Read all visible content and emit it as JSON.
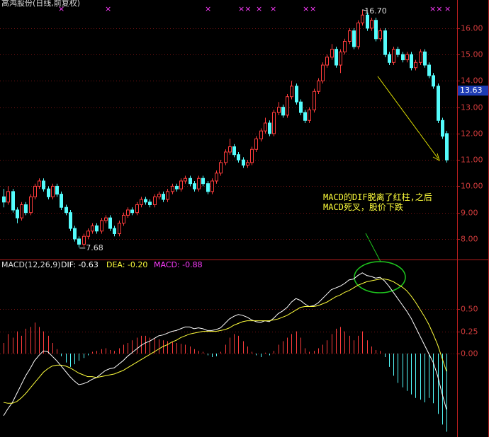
{
  "chart_data": [
    {
      "type": "candlestick",
      "title": "高鸿股份(日线,前复权)",
      "up_color": "#ff3c3c",
      "down_color": "#54fcfc",
      "ylim": [
        7.22,
        17.07
      ],
      "yticks": [
        {
          "value": 8,
          "label": "8.00"
        },
        {
          "value": 9,
          "label": "9.00"
        },
        {
          "value": 10,
          "label": "10.00"
        },
        {
          "value": 11,
          "label": "11.00"
        },
        {
          "value": 12,
          "label": "12.00"
        },
        {
          "value": 13,
          "label": "13.00"
        },
        {
          "value": 14,
          "label": "14.00"
        },
        {
          "value": 15,
          "label": "15.00"
        },
        {
          "value": 16,
          "label": "16.00"
        }
      ],
      "grid": true,
      "current_price": 13.63,
      "high_label": "16.70",
      "low_label": "7.68",
      "annotation": "MACD的DIF脱离了红柱,之后MACD死叉，股价下跌",
      "ohlc": [
        [
          9.6,
          9.9,
          9.2,
          9.4
        ],
        [
          9.4,
          10.0,
          9.3,
          9.8
        ],
        [
          9.8,
          9.9,
          9.0,
          9.1
        ],
        [
          9.1,
          9.2,
          8.6,
          8.8
        ],
        [
          8.8,
          9.4,
          8.7,
          9.3
        ],
        [
          9.3,
          9.4,
          8.9,
          9.0
        ],
        [
          9.0,
          9.7,
          8.9,
          9.6
        ],
        [
          9.6,
          10.1,
          9.5,
          10.0
        ],
        [
          10.0,
          10.3,
          9.9,
          10.2
        ],
        [
          10.2,
          10.3,
          9.8,
          9.9
        ],
        [
          9.9,
          10.0,
          9.5,
          9.6
        ],
        [
          9.6,
          10.1,
          9.5,
          10.0
        ],
        [
          10.0,
          10.1,
          9.6,
          9.7
        ],
        [
          9.7,
          9.8,
          9.1,
          9.2
        ],
        [
          9.2,
          9.3,
          8.9,
          9.0
        ],
        [
          9.0,
          9.1,
          8.3,
          8.4
        ],
        [
          8.4,
          8.5,
          7.9,
          8.0
        ],
        [
          8.0,
          8.1,
          7.68,
          7.8
        ],
        [
          7.8,
          8.2,
          7.7,
          8.1
        ],
        [
          8.1,
          8.4,
          8.0,
          8.3
        ],
        [
          8.3,
          8.6,
          8.2,
          8.5
        ],
        [
          8.5,
          8.6,
          8.2,
          8.3
        ],
        [
          8.3,
          8.8,
          8.2,
          8.7
        ],
        [
          8.7,
          8.9,
          8.6,
          8.8
        ],
        [
          8.8,
          8.9,
          8.3,
          8.4
        ],
        [
          8.4,
          8.5,
          8.1,
          8.2
        ],
        [
          8.2,
          8.7,
          8.1,
          8.6
        ],
        [
          8.6,
          9.0,
          8.5,
          8.9
        ],
        [
          8.9,
          9.2,
          8.8,
          9.1
        ],
        [
          9.1,
          9.2,
          8.9,
          9.0
        ],
        [
          9.0,
          9.4,
          8.9,
          9.3
        ],
        [
          9.3,
          9.6,
          9.2,
          9.5
        ],
        [
          9.5,
          9.6,
          9.3,
          9.4
        ],
        [
          9.4,
          9.5,
          9.2,
          9.3
        ],
        [
          9.3,
          9.7,
          9.2,
          9.6
        ],
        [
          9.6,
          9.8,
          9.5,
          9.7
        ],
        [
          9.7,
          9.8,
          9.4,
          9.5
        ],
        [
          9.5,
          9.9,
          9.4,
          9.8
        ],
        [
          9.8,
          10.1,
          9.7,
          10.0
        ],
        [
          10.0,
          10.1,
          9.8,
          9.9
        ],
        [
          9.9,
          10.3,
          9.8,
          10.2
        ],
        [
          10.2,
          10.4,
          10.1,
          10.3
        ],
        [
          10.3,
          10.4,
          10.0,
          10.1
        ],
        [
          10.1,
          10.2,
          9.8,
          9.9
        ],
        [
          9.9,
          10.4,
          9.8,
          10.3
        ],
        [
          10.3,
          10.4,
          10.0,
          10.1
        ],
        [
          10.1,
          10.2,
          9.7,
          9.8
        ],
        [
          9.8,
          10.3,
          9.7,
          10.2
        ],
        [
          10.2,
          10.6,
          10.1,
          10.5
        ],
        [
          10.5,
          11.0,
          10.4,
          10.9
        ],
        [
          10.9,
          11.4,
          10.8,
          11.3
        ],
        [
          11.3,
          11.8,
          11.2,
          11.5
        ],
        [
          11.5,
          11.6,
          11.1,
          11.2
        ],
        [
          11.2,
          11.3,
          10.9,
          11.0
        ],
        [
          11.0,
          11.1,
          10.7,
          10.8
        ],
        [
          10.8,
          11.0,
          10.7,
          10.9
        ],
        [
          10.9,
          11.5,
          10.8,
          11.4
        ],
        [
          11.4,
          11.9,
          11.3,
          11.8
        ],
        [
          11.8,
          12.2,
          11.7,
          12.1
        ],
        [
          12.1,
          12.6,
          12.0,
          12.4
        ],
        [
          12.4,
          12.5,
          11.9,
          12.0
        ],
        [
          12.0,
          12.9,
          11.9,
          12.8
        ],
        [
          12.8,
          13.2,
          12.7,
          13.0
        ],
        [
          13.0,
          13.1,
          12.6,
          12.7
        ],
        [
          12.7,
          13.5,
          12.6,
          13.4
        ],
        [
          13.4,
          14.0,
          13.3,
          13.8
        ],
        [
          13.8,
          13.9,
          13.1,
          13.2
        ],
        [
          13.2,
          13.3,
          12.7,
          12.8
        ],
        [
          12.8,
          12.9,
          12.4,
          12.5
        ],
        [
          12.5,
          13.0,
          12.4,
          12.9
        ],
        [
          12.9,
          13.7,
          12.8,
          13.6
        ],
        [
          13.6,
          14.1,
          13.5,
          14.0
        ],
        [
          14.0,
          14.7,
          13.9,
          14.6
        ],
        [
          14.6,
          15.0,
          14.5,
          14.9
        ],
        [
          14.9,
          15.4,
          14.8,
          15.2
        ],
        [
          15.2,
          15.3,
          14.5,
          14.6
        ],
        [
          14.6,
          15.2,
          14.3,
          15.1
        ],
        [
          15.1,
          15.6,
          15.0,
          15.5
        ],
        [
          15.5,
          16.0,
          15.4,
          15.9
        ],
        [
          15.9,
          16.0,
          15.2,
          15.3
        ],
        [
          15.3,
          16.3,
          15.2,
          16.2
        ],
        [
          16.2,
          16.7,
          16.1,
          16.5
        ],
        [
          16.5,
          16.6,
          15.9,
          16.0
        ],
        [
          16.0,
          16.4,
          15.9,
          16.3
        ],
        [
          16.3,
          16.4,
          15.5,
          15.6
        ],
        [
          15.6,
          16.0,
          15.5,
          15.9
        ],
        [
          15.9,
          16.0,
          14.9,
          15.0
        ],
        [
          15.0,
          15.1,
          14.6,
          14.7
        ],
        [
          14.7,
          15.3,
          14.6,
          15.2
        ],
        [
          15.2,
          15.3,
          14.9,
          15.0
        ],
        [
          15.0,
          15.1,
          14.7,
          14.8
        ],
        [
          14.8,
          15.1,
          14.7,
          15.0
        ],
        [
          15.0,
          15.1,
          14.4,
          14.5
        ],
        [
          14.5,
          14.8,
          14.4,
          14.7
        ],
        [
          14.7,
          15.2,
          14.6,
          15.1
        ],
        [
          15.1,
          15.2,
          14.5,
          14.6
        ],
        [
          14.6,
          14.7,
          14.1,
          14.2
        ],
        [
          14.2,
          14.3,
          13.7,
          13.8
        ],
        [
          13.8,
          13.9,
          12.4,
          12.5
        ],
        [
          12.5,
          12.6,
          11.8,
          11.9
        ],
        [
          12.0,
          12.1,
          10.9,
          11.0
        ]
      ]
    },
    {
      "type": "macd",
      "title": "MACD(12,26,9)",
      "ylim": [
        -0.94,
        1.06
      ],
      "yticks": [
        {
          "value": 0,
          "label": "0.00"
        },
        {
          "value": 0.25,
          "label": "0.25"
        },
        {
          "value": 0.5,
          "label": "0.50"
        }
      ],
      "grid": true,
      "series": [
        {
          "name": "DIF: -0.63",
          "color": "#ffffff",
          "values": [
            -0.7,
            -0.62,
            -0.55,
            -0.45,
            -0.35,
            -0.25,
            -0.17,
            -0.08,
            -0.02,
            0.03,
            0.02,
            -0.03,
            -0.08,
            -0.14,
            -0.2,
            -0.26,
            -0.31,
            -0.35,
            -0.34,
            -0.32,
            -0.29,
            -0.27,
            -0.23,
            -0.19,
            -0.17,
            -0.16,
            -0.12,
            -0.08,
            -0.03,
            0.01,
            0.05,
            0.09,
            0.12,
            0.14,
            0.17,
            0.2,
            0.21,
            0.23,
            0.25,
            0.26,
            0.28,
            0.3,
            0.3,
            0.28,
            0.29,
            0.28,
            0.26,
            0.26,
            0.27,
            0.29,
            0.34,
            0.39,
            0.42,
            0.44,
            0.43,
            0.41,
            0.38,
            0.36,
            0.35,
            0.37,
            0.36,
            0.4,
            0.45,
            0.48,
            0.52,
            0.58,
            0.62,
            0.6,
            0.56,
            0.53,
            0.54,
            0.57,
            0.62,
            0.67,
            0.72,
            0.74,
            0.76,
            0.79,
            0.83,
            0.84,
            0.88,
            0.91,
            0.88,
            0.87,
            0.85,
            0.86,
            0.82,
            0.76,
            0.69,
            0.62,
            0.55,
            0.48,
            0.4,
            0.3,
            0.2,
            0.1,
            0.0,
            -0.1,
            -0.25,
            -0.45,
            -0.63
          ]
        },
        {
          "name": "DEA: -0.20",
          "color": "#ffff3c",
          "values": [
            -0.55,
            -0.56,
            -0.56,
            -0.54,
            -0.5,
            -0.45,
            -0.39,
            -0.33,
            -0.27,
            -0.21,
            -0.17,
            -0.14,
            -0.13,
            -0.13,
            -0.14,
            -0.16,
            -0.19,
            -0.22,
            -0.24,
            -0.26,
            -0.26,
            -0.27,
            -0.26,
            -0.25,
            -0.24,
            -0.23,
            -0.21,
            -0.19,
            -0.16,
            -0.13,
            -0.1,
            -0.07,
            -0.04,
            -0.01,
            0.02,
            0.05,
            0.08,
            0.1,
            0.13,
            0.15,
            0.18,
            0.2,
            0.22,
            0.23,
            0.24,
            0.25,
            0.25,
            0.25,
            0.25,
            0.26,
            0.27,
            0.29,
            0.32,
            0.34,
            0.36,
            0.37,
            0.37,
            0.37,
            0.37,
            0.37,
            0.37,
            0.38,
            0.39,
            0.41,
            0.43,
            0.46,
            0.49,
            0.52,
            0.53,
            0.53,
            0.53,
            0.54,
            0.56,
            0.58,
            0.61,
            0.64,
            0.66,
            0.69,
            0.71,
            0.74,
            0.77,
            0.79,
            0.81,
            0.82,
            0.83,
            0.84,
            0.84,
            0.83,
            0.81,
            0.78,
            0.75,
            0.71,
            0.65,
            0.58,
            0.5,
            0.42,
            0.33,
            0.22,
            0.1,
            -0.05,
            -0.2
          ]
        },
        {
          "name": "MACD: -0.88",
          "color": "#ff3cff",
          "up_color": "#ff3c3c",
          "down_color": "#54fcfc",
          "bars": true,
          "values": [
            0.12,
            0.22,
            0.18,
            0.25,
            0.2,
            0.28,
            0.3,
            0.35,
            0.3,
            0.25,
            0.2,
            0.12,
            0.05,
            -0.03,
            -0.1,
            -0.15,
            -0.12,
            -0.08,
            -0.05,
            -0.02,
            0.02,
            0.03,
            0.05,
            0.06,
            0.04,
            0.03,
            0.06,
            0.1,
            0.12,
            0.15,
            0.18,
            0.2,
            0.2,
            0.18,
            0.17,
            0.16,
            0.15,
            0.14,
            0.13,
            0.12,
            0.11,
            0.1,
            0.08,
            0.05,
            0.03,
            0.02,
            -0.02,
            -0.04,
            -0.03,
            0.02,
            0.1,
            0.18,
            0.22,
            0.2,
            0.14,
            0.08,
            0.02,
            -0.02,
            -0.04,
            0.01,
            -0.02,
            0.03,
            0.1,
            0.14,
            0.18,
            0.22,
            0.25,
            0.18,
            0.06,
            0.02,
            0.03,
            0.06,
            0.1,
            0.15,
            0.22,
            0.28,
            0.3,
            0.25,
            0.2,
            0.15,
            0.2,
            0.25,
            0.15,
            0.08,
            0.04,
            0.03,
            -0.04,
            -0.15,
            -0.25,
            -0.33,
            -0.38,
            -0.42,
            -0.46,
            -0.5,
            -0.52,
            -0.55,
            -0.5,
            -0.56,
            -0.68,
            -0.8,
            -0.88
          ]
        }
      ]
    }
  ]
}
